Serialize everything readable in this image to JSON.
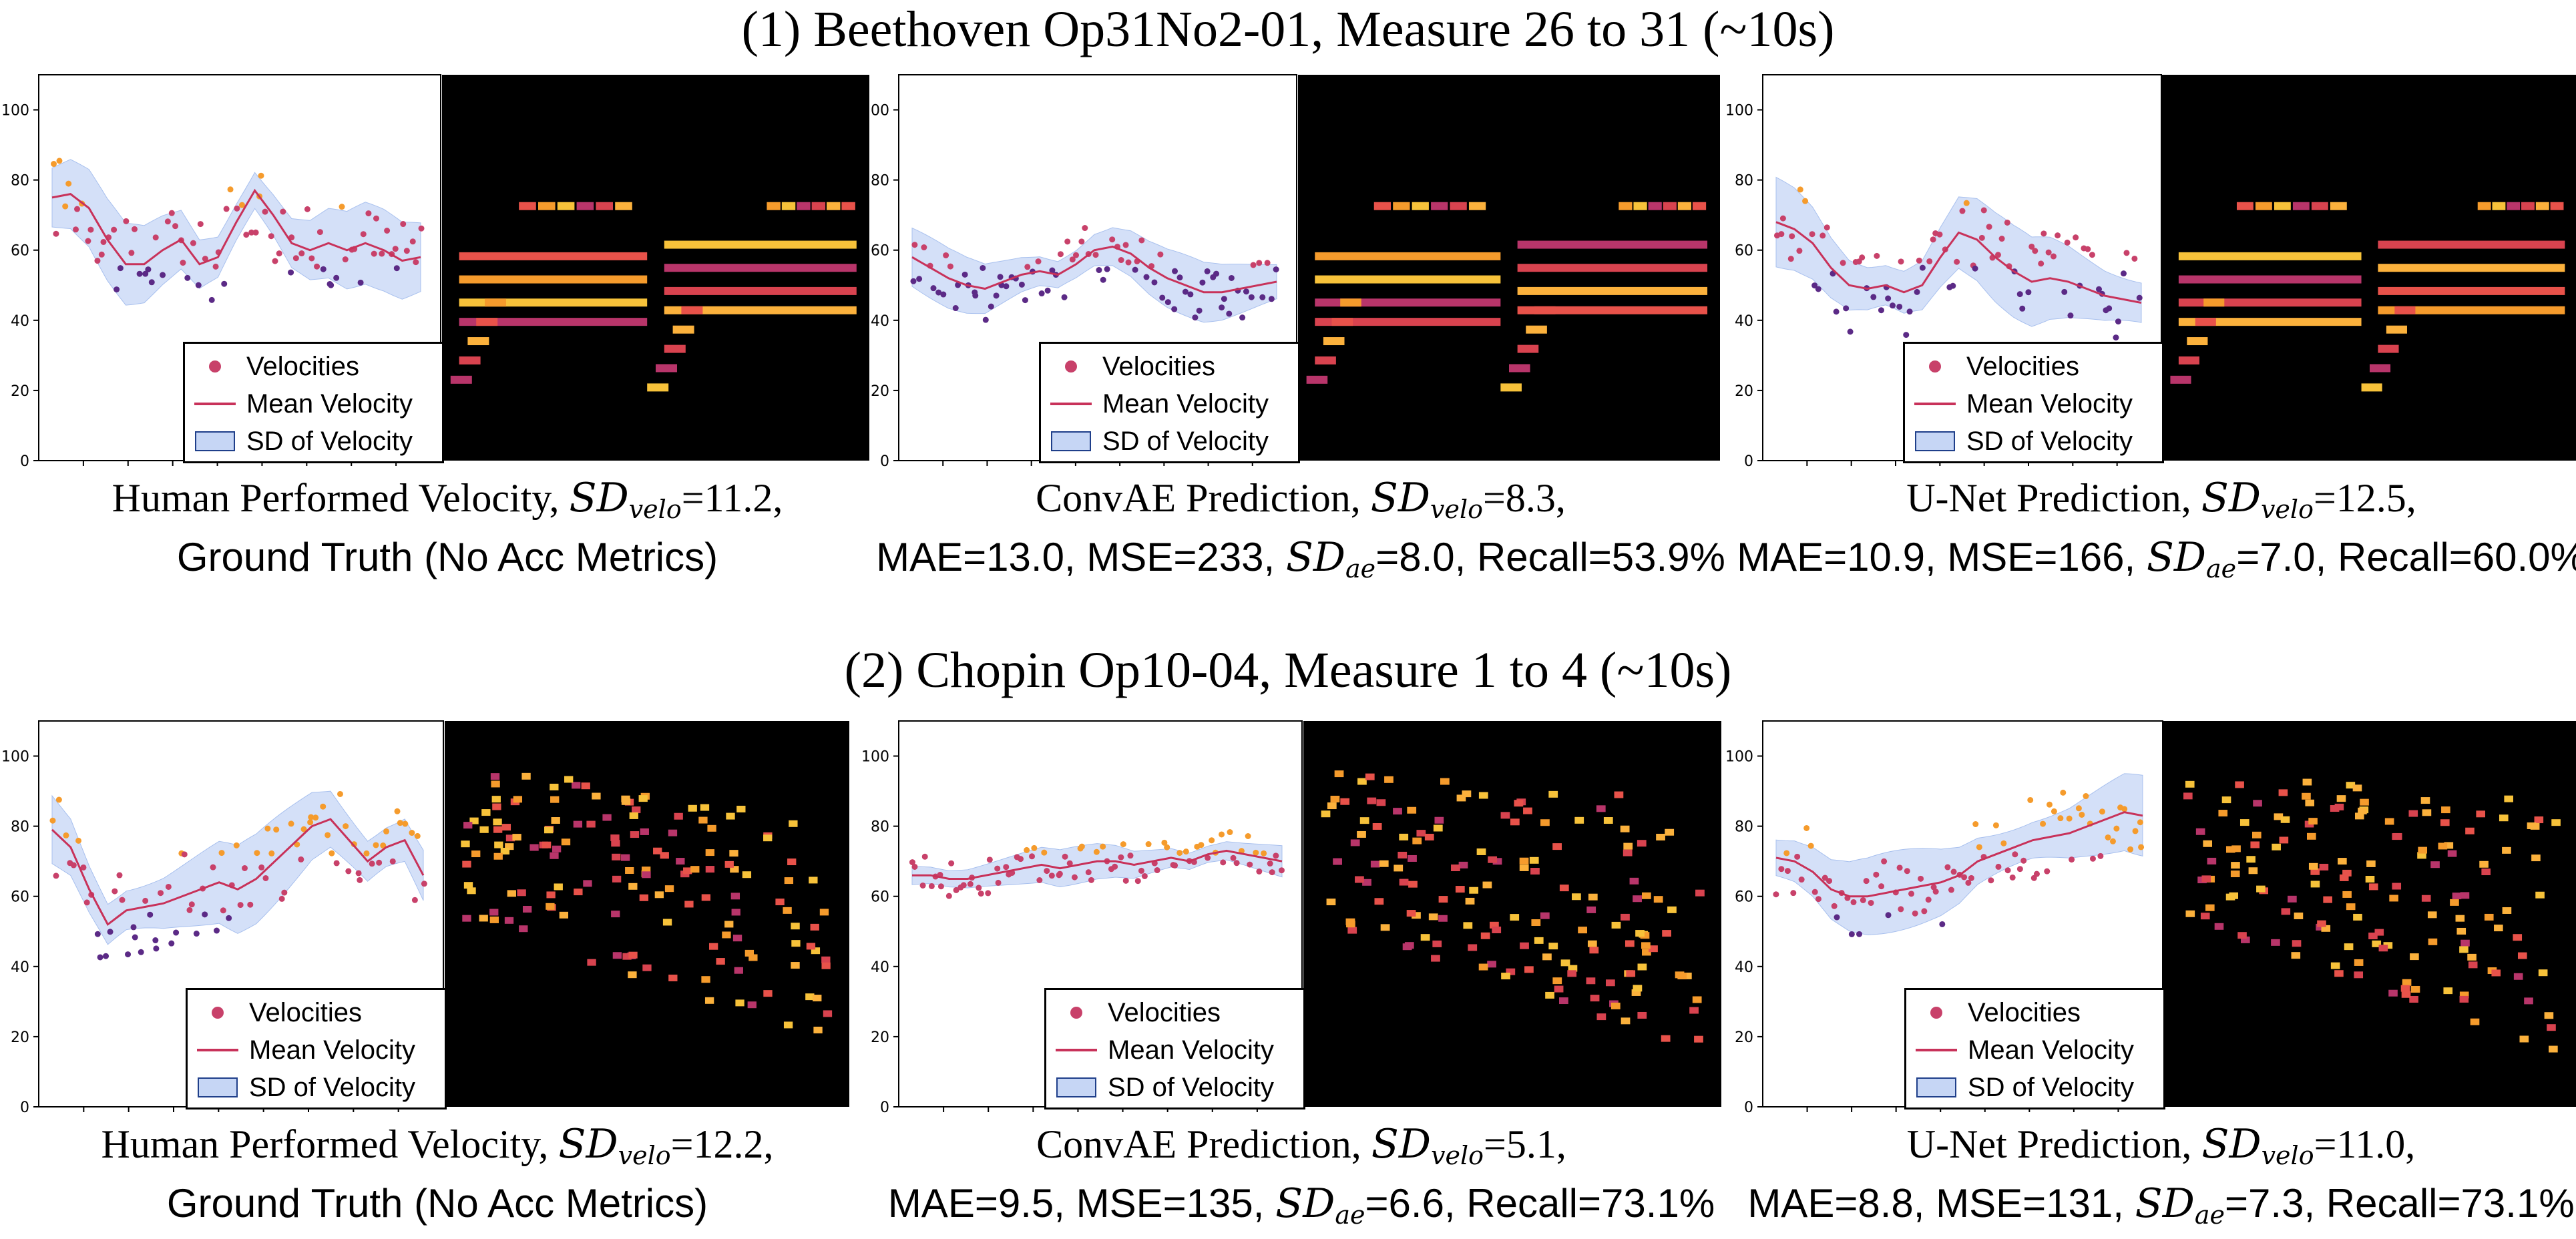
{
  "rows": [
    {
      "title": "(1) Beethoven Op31No2-01,  Measure 26 to 31 (~10s)"
    },
    {
      "title": "(2) Chopin Op10-04, Measure 1 to 4 (~10s)"
    }
  ],
  "legend": {
    "velocities": "Velocities",
    "mean": "Mean Velocity",
    "sd": "SD of Velocity"
  },
  "sd_symbol": {
    "main": "SD",
    "velo": "velo",
    "ae": "ae"
  },
  "colors": {
    "points_low": "#5b2a86",
    "points_mid": "#c8416a",
    "points_high": "#f59b2c",
    "mean_line": "#c8325a",
    "sd_fill": "#c6d6f5",
    "pianoroll_bg": "#000000"
  },
  "chart_data": [
    {
      "type": "scatter",
      "row": 1,
      "panel": "Human",
      "caption": {
        "l1_a": "Human Performed Velocity, ",
        "l1_b": "=11.2,",
        "l2": "Ground Truth (No Acc Metrics)"
      },
      "yticks": [
        "0",
        "20",
        "40",
        "60",
        "80",
        "100"
      ],
      "ylim": [
        0,
        110
      ],
      "mean_x": [
        0,
        0.05,
        0.1,
        0.15,
        0.2,
        0.25,
        0.3,
        0.35,
        0.4,
        0.45,
        0.5,
        0.55,
        0.6,
        0.65,
        0.7,
        0.75,
        0.8,
        0.85,
        0.9,
        0.95,
        1.0
      ],
      "mean_y": [
        75,
        76,
        72,
        63,
        56,
        56,
        60,
        63,
        56,
        58,
        68,
        77,
        70,
        62,
        60,
        62,
        60,
        62,
        60,
        57,
        58
      ],
      "sd": 11.2
    },
    {
      "type": "scatter",
      "row": 1,
      "panel": "ConvAE",
      "caption": {
        "l1_a": "ConvAE Prediction, ",
        "l1_b": "=8.3,",
        "l2_a": "MAE=13.0, MSE=233, ",
        "l2_b": "=8.0, Recall=53.9%"
      },
      "yticks": [
        "0",
        "20",
        "40",
        "60",
        "80",
        "100"
      ],
      "ylim": [
        0,
        110
      ],
      "mean_x": [
        0,
        0.05,
        0.1,
        0.15,
        0.2,
        0.25,
        0.3,
        0.35,
        0.4,
        0.45,
        0.5,
        0.55,
        0.6,
        0.65,
        0.7,
        0.75,
        0.8,
        0.85,
        0.9,
        0.95,
        1.0
      ],
      "mean_y": [
        58,
        55,
        52,
        50,
        49,
        51,
        53,
        54,
        53,
        56,
        60,
        61,
        59,
        55,
        52,
        50,
        48,
        48,
        49,
        50,
        51
      ],
      "sd": 8.3
    },
    {
      "type": "scatter",
      "row": 1,
      "panel": "U-Net",
      "caption": {
        "l1_a": "U-Net Prediction, ",
        "l1_b": "=12.5,",
        "l2_a": "MAE=10.9, MSE=166, ",
        "l2_b": "=7.0, Recall=60.0%"
      },
      "yticks": [
        "0",
        "20",
        "40",
        "60",
        "80",
        "100"
      ],
      "ylim": [
        0,
        110
      ],
      "mean_x": [
        0,
        0.05,
        0.1,
        0.15,
        0.2,
        0.25,
        0.3,
        0.35,
        0.4,
        0.45,
        0.5,
        0.55,
        0.6,
        0.65,
        0.7,
        0.75,
        0.8,
        0.85,
        0.9,
        0.95,
        1.0
      ],
      "mean_y": [
        68,
        66,
        62,
        55,
        50,
        49,
        50,
        48,
        50,
        58,
        65,
        63,
        58,
        54,
        51,
        52,
        51,
        49,
        47,
        46,
        45
      ],
      "sd": 12.5
    },
    {
      "type": "scatter",
      "row": 2,
      "panel": "Human",
      "caption": {
        "l1_a": "Human Performed Velocity, ",
        "l1_b": "=12.2,",
        "l2": "Ground Truth (No Acc Metrics)"
      },
      "yticks": [
        "0",
        "20",
        "40",
        "60",
        "80",
        "100"
      ],
      "ylim": [
        0,
        110
      ],
      "mean_x": [
        0,
        0.05,
        0.1,
        0.15,
        0.2,
        0.25,
        0.3,
        0.35,
        0.4,
        0.45,
        0.5,
        0.55,
        0.6,
        0.65,
        0.7,
        0.75,
        0.8,
        0.85,
        0.9,
        0.95,
        1.0
      ],
      "mean_y": [
        79,
        74,
        62,
        52,
        56,
        57,
        58,
        60,
        62,
        64,
        62,
        65,
        70,
        75,
        80,
        82,
        76,
        70,
        74,
        76,
        66
      ],
      "sd": 12.2
    },
    {
      "type": "scatter",
      "row": 2,
      "panel": "ConvAE",
      "caption": {
        "l1_a": "ConvAE Prediction, ",
        "l1_b": "=5.1,",
        "l2_a": "MAE=9.5, MSE=135, ",
        "l2_b": "=6.6, Recall=73.1%"
      },
      "yticks": [
        "0",
        "20",
        "40",
        "60",
        "80",
        "100"
      ],
      "ylim": [
        0,
        110
      ],
      "mean_x": [
        0,
        0.05,
        0.1,
        0.15,
        0.2,
        0.25,
        0.3,
        0.35,
        0.4,
        0.45,
        0.5,
        0.55,
        0.6,
        0.65,
        0.7,
        0.75,
        0.8,
        0.85,
        0.9,
        0.95,
        1.0
      ],
      "mean_y": [
        66,
        66,
        65,
        65,
        66,
        67,
        68,
        69,
        68,
        69,
        70,
        70,
        69,
        70,
        71,
        70,
        72,
        73,
        72,
        71,
        70
      ],
      "sd": 5.1
    },
    {
      "type": "scatter",
      "row": 2,
      "panel": "U-Net",
      "caption": {
        "l1_a": "U-Net Prediction, ",
        "l1_b": "=11.0,",
        "l2_a": "MAE=8.8, MSE=131, ",
        "l2_b": "=7.3, Recall=73.1%"
      },
      "yticks": [
        "0",
        "20",
        "40",
        "60",
        "80",
        "100"
      ],
      "ylim": [
        0,
        110
      ],
      "mean_x": [
        0,
        0.05,
        0.1,
        0.15,
        0.2,
        0.25,
        0.3,
        0.35,
        0.4,
        0.45,
        0.5,
        0.55,
        0.6,
        0.65,
        0.7,
        0.75,
        0.8,
        0.85,
        0.9,
        0.95,
        1.0
      ],
      "mean_y": [
        71,
        70,
        67,
        62,
        60,
        60,
        61,
        62,
        63,
        64,
        66,
        70,
        72,
        74,
        76,
        77,
        78,
        80,
        82,
        84,
        83
      ],
      "sd": 11.0
    }
  ]
}
